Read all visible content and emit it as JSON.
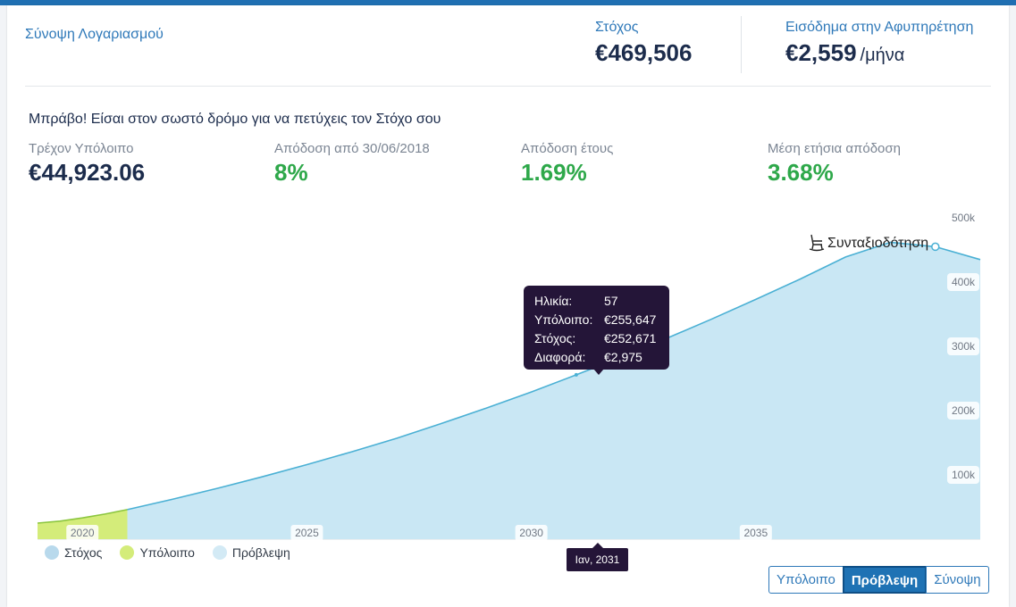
{
  "header": {
    "account_title": "Σύνοψη Λογαριασμού",
    "goal_label": "Στόχος",
    "goal_value": "€469,506",
    "income_label": "Εισόδημα στην Αφυπηρέτηση",
    "income_value": "€2,559",
    "income_unit": "/μήνα"
  },
  "message": "Μπράβο! Είσαι στον σωστό δρόμο για να πετύχεις τον Στόχο σου",
  "stats": [
    {
      "label": "Τρέχον Υπόλοιπο",
      "value": "€44,923.06"
    },
    {
      "label": "Απόδοση από 30/06/2018",
      "value": "8%"
    },
    {
      "label": "Απόδοση έτους",
      "value": "1.69%"
    },
    {
      "label": "Μέση ετήσια απόδοση",
      "value": "3.68%"
    }
  ],
  "tooltip": {
    "rows": [
      {
        "key": "Ηλικία:",
        "value": "57"
      },
      {
        "key": "Υπόλοιπο:",
        "value": "€255,647"
      },
      {
        "key": "Στόχος:",
        "value": "€252,671"
      },
      {
        "key": "Διαφορά:",
        "value": "€2,975"
      }
    ]
  },
  "x_cursor_label": "Ιαν, 2031",
  "retirement_label": "Συνταξιοδότηση",
  "legend": [
    {
      "label": "Στόχος",
      "color": "#b8d9ec"
    },
    {
      "label": "Υπόλοιπο",
      "color": "#d4ec7a"
    },
    {
      "label": "Πρόβλεψη",
      "color": "#d3eaf5"
    }
  ],
  "buttons": [
    {
      "label": "Υπόλοιπο",
      "active": false
    },
    {
      "label": "Πρόβλεψη",
      "active": true
    },
    {
      "label": "Σύνοψη",
      "active": false
    }
  ],
  "colors": {
    "projection_fill": "#c9e7f4",
    "projection_line": "#4ab0d4",
    "balance_fill": "#d4ec7a",
    "balance_line": "#8cc63f",
    "accent": "#2f79b9",
    "positive": "#2ea84a"
  },
  "chart_data": {
    "type": "area",
    "x_ticks": [
      "2020",
      "2025",
      "2030",
      "2035"
    ],
    "y_ticks": [
      "100k",
      "200k",
      "300k",
      "400k",
      "500k"
    ],
    "y_tick_values": [
      100000,
      200000,
      300000,
      400000,
      500000
    ],
    "ylim": [
      0,
      500000
    ],
    "xlim": [
      2019.0,
      2040.0
    ],
    "series": [
      {
        "name": "Υπόλοιπο",
        "points": [
          [
            2019.0,
            25000
          ],
          [
            2019.5,
            28000
          ],
          [
            2020.0,
            33000
          ],
          [
            2020.5,
            39000
          ],
          [
            2021.0,
            46000
          ]
        ]
      },
      {
        "name": "Πρόβλεψη",
        "points": [
          [
            2021.0,
            46000
          ],
          [
            2022.0,
            62000
          ],
          [
            2023.0,
            79000
          ],
          [
            2024.0,
            97000
          ],
          [
            2025.0,
            116000
          ],
          [
            2026.0,
            136000
          ],
          [
            2027.0,
            157000
          ],
          [
            2028.0,
            180000
          ],
          [
            2029.0,
            204000
          ],
          [
            2030.0,
            229000
          ],
          [
            2031.0,
            255647
          ],
          [
            2032.0,
            283000
          ],
          [
            2033.0,
            312000
          ],
          [
            2034.0,
            342000
          ],
          [
            2035.0,
            373000
          ],
          [
            2036.0,
            405000
          ],
          [
            2037.0,
            439000
          ],
          [
            2038.0,
            462000
          ],
          [
            2039.0,
            455000
          ],
          [
            2040.0,
            435000
          ]
        ]
      }
    ],
    "retirement_x": 2039.0
  }
}
